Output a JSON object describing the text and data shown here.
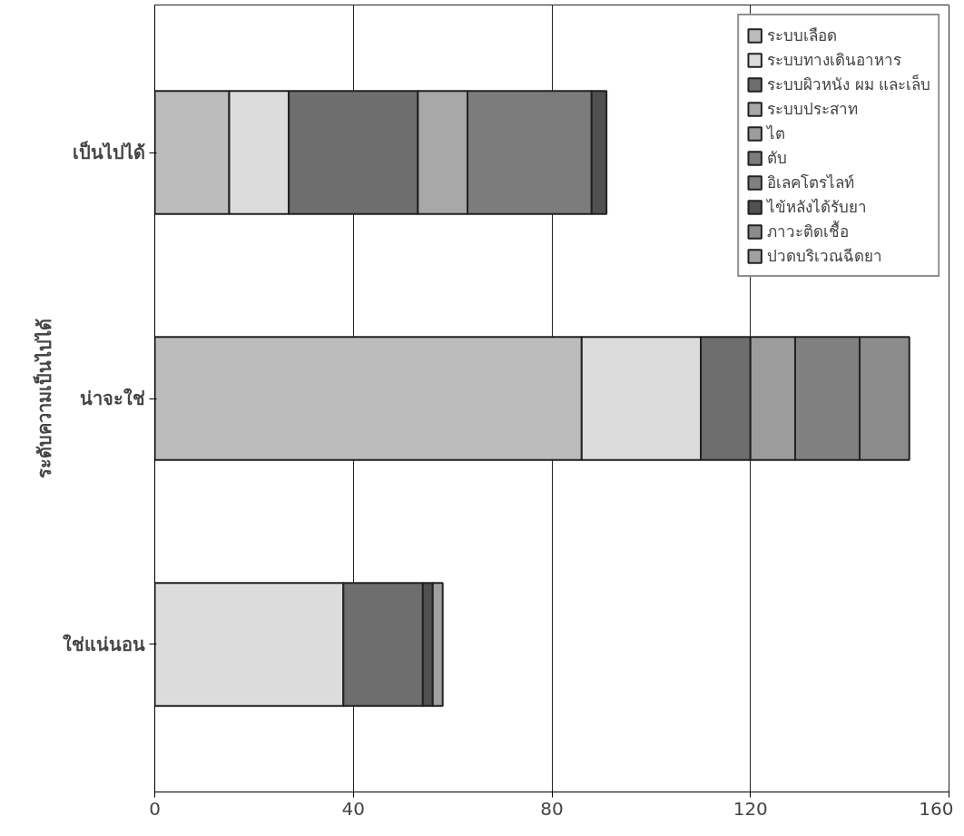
{
  "chart_data": {
    "type": "bar",
    "orientation": "horizontal",
    "stacked": true,
    "ylabel": "ระดับความเป็นไปได้",
    "categories": [
      "เป็นไปได้",
      "น่าจะใช่",
      "ใช่แน่นอน"
    ],
    "series": [
      {
        "name": "ระบบเลือด",
        "color": "#bcbcbc",
        "values": [
          15,
          86,
          0
        ]
      },
      {
        "name": "ระบบทางเดินอาหาร",
        "color": "#dcdcdc",
        "values": [
          12,
          24,
          38
        ]
      },
      {
        "name": "ระบบผิวหนัง ผม และเล็บ",
        "color": "#6e6e6e",
        "values": [
          26,
          10,
          16
        ]
      },
      {
        "name": "ระบบประสาท",
        "color": "#a8a8a8",
        "values": [
          10,
          0,
          0
        ]
      },
      {
        "name": "ไต",
        "color": "#9c9c9c",
        "values": [
          0,
          9,
          0
        ]
      },
      {
        "name": "ตับ",
        "color": "#7c7c7c",
        "values": [
          25,
          0,
          0
        ]
      },
      {
        "name": "อิเลคโตรไลท์",
        "color": "#808080",
        "values": [
          0,
          13,
          0
        ]
      },
      {
        "name": "ไข้หลังได้รับยา",
        "color": "#505050",
        "values": [
          3,
          0,
          2
        ]
      },
      {
        "name": "ภาวะติดเชื้อ",
        "color": "#8c8c8c",
        "values": [
          0,
          10,
          0
        ]
      },
      {
        "name": "ปวดบริเวณฉีดยา",
        "color": "#a0a0a0",
        "values": [
          0,
          0,
          2
        ]
      }
    ],
    "xlim": [
      0,
      160
    ],
    "xticks": [
      0,
      40,
      80,
      120,
      160
    ],
    "grid": "x",
    "legend": "top right"
  }
}
